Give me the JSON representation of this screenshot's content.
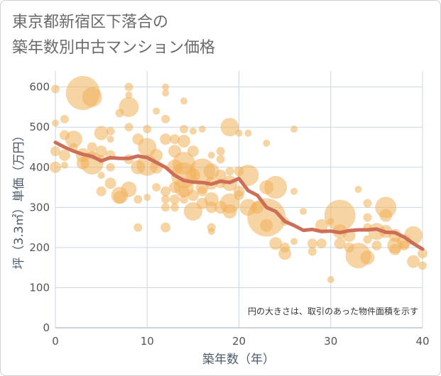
{
  "title_lines": [
    "東京都新宿区下落合の",
    "築年数別中古マンション価格"
  ],
  "colors": {
    "bubble": "#f0b05a",
    "bubble_opacity": 0.55,
    "trend_line": "#cd6e58",
    "grid": "#c8d8e6",
    "plot_bg": "#ffffff"
  },
  "chart_data": {
    "type": "scatter",
    "title": "東京都新宿区下落合の築年数別中古マンション価格",
    "xlabel": "築年数（年）",
    "ylabel": "坪（3.3㎡）単価（万円）",
    "xlim": [
      0,
      40
    ],
    "ylim": [
      0,
      640
    ],
    "x_ticks": [
      "0",
      "10",
      "20",
      "30",
      "40"
    ],
    "y_ticks": [
      "0",
      "100",
      "200",
      "300",
      "400",
      "500",
      "600"
    ],
    "grid": true,
    "annotation": "円の大きさは、取引のあった物件面積を示す",
    "series": [
      {
        "kind": "bubbles",
        "points": [
          {
            "x": 0,
            "y": 595,
            "s": 6
          },
          {
            "x": 0,
            "y": 510,
            "s": 5
          },
          {
            "x": 0,
            "y": 440,
            "s": 7
          },
          {
            "x": 0,
            "y": 400,
            "s": 8
          },
          {
            "x": 1,
            "y": 520,
            "s": 6
          },
          {
            "x": 1,
            "y": 480,
            "s": 7
          },
          {
            "x": 1,
            "y": 430,
            "s": 8
          },
          {
            "x": 1,
            "y": 405,
            "s": 5
          },
          {
            "x": 2,
            "y": 470,
            "s": 12
          },
          {
            "x": 2,
            "y": 450,
            "s": 6
          },
          {
            "x": 3,
            "y": 585,
            "s": 24
          },
          {
            "x": 3,
            "y": 430,
            "s": 10
          },
          {
            "x": 3,
            "y": 410,
            "s": 9
          },
          {
            "x": 4,
            "y": 575,
            "s": 14
          },
          {
            "x": 4,
            "y": 450,
            "s": 7
          },
          {
            "x": 4,
            "y": 410,
            "s": 16
          },
          {
            "x": 4,
            "y": 430,
            "s": 6
          },
          {
            "x": 5,
            "y": 485,
            "s": 10
          },
          {
            "x": 5,
            "y": 440,
            "s": 8
          },
          {
            "x": 5,
            "y": 420,
            "s": 6
          },
          {
            "x": 5,
            "y": 380,
            "s": 5
          },
          {
            "x": 5,
            "y": 340,
            "s": 7
          },
          {
            "x": 6,
            "y": 490,
            "s": 6
          },
          {
            "x": 6,
            "y": 470,
            "s": 5
          },
          {
            "x": 6,
            "y": 430,
            "s": 7
          },
          {
            "x": 6,
            "y": 400,
            "s": 6
          },
          {
            "x": 6,
            "y": 360,
            "s": 8
          },
          {
            "x": 7,
            "y": 535,
            "s": 6
          },
          {
            "x": 7,
            "y": 330,
            "s": 12
          },
          {
            "x": 7,
            "y": 325,
            "s": 9
          },
          {
            "x": 8,
            "y": 600,
            "s": 6
          },
          {
            "x": 8,
            "y": 580,
            "s": 5
          },
          {
            "x": 8,
            "y": 550,
            "s": 14
          },
          {
            "x": 8,
            "y": 500,
            "s": 6
          },
          {
            "x": 8,
            "y": 420,
            "s": 7
          },
          {
            "x": 8,
            "y": 345,
            "s": 11
          },
          {
            "x": 9,
            "y": 470,
            "s": 8
          },
          {
            "x": 9,
            "y": 400,
            "s": 10
          },
          {
            "x": 9,
            "y": 320,
            "s": 6
          },
          {
            "x": 9,
            "y": 250,
            "s": 6
          },
          {
            "x": 10,
            "y": 495,
            "s": 6
          },
          {
            "x": 10,
            "y": 450,
            "s": 13
          },
          {
            "x": 10,
            "y": 405,
            "s": 15
          },
          {
            "x": 10,
            "y": 325,
            "s": 5
          },
          {
            "x": 11,
            "y": 540,
            "s": 5
          },
          {
            "x": 11,
            "y": 430,
            "s": 9
          },
          {
            "x": 11,
            "y": 400,
            "s": 9
          },
          {
            "x": 11,
            "y": 350,
            "s": 6
          },
          {
            "x": 12,
            "y": 600,
            "s": 5
          },
          {
            "x": 12,
            "y": 585,
            "s": 5
          },
          {
            "x": 12,
            "y": 520,
            "s": 6
          },
          {
            "x": 12,
            "y": 470,
            "s": 8
          },
          {
            "x": 12,
            "y": 340,
            "s": 7
          },
          {
            "x": 12,
            "y": 320,
            "s": 6
          },
          {
            "x": 12,
            "y": 300,
            "s": 6
          },
          {
            "x": 12,
            "y": 250,
            "s": 7
          },
          {
            "x": 13,
            "y": 470,
            "s": 7
          },
          {
            "x": 13,
            "y": 440,
            "s": 9
          },
          {
            "x": 13,
            "y": 400,
            "s": 11
          },
          {
            "x": 13,
            "y": 350,
            "s": 8
          },
          {
            "x": 13,
            "y": 320,
            "s": 7
          },
          {
            "x": 13,
            "y": 300,
            "s": 6
          },
          {
            "x": 14,
            "y": 565,
            "s": 5
          },
          {
            "x": 14,
            "y": 495,
            "s": 6
          },
          {
            "x": 14,
            "y": 465,
            "s": 9
          },
          {
            "x": 14,
            "y": 410,
            "s": 16
          },
          {
            "x": 14,
            "y": 380,
            "s": 18
          },
          {
            "x": 14,
            "y": 350,
            "s": 14
          },
          {
            "x": 14,
            "y": 340,
            "s": 8
          },
          {
            "x": 14,
            "y": 320,
            "s": 6
          },
          {
            "x": 15,
            "y": 490,
            "s": 5
          },
          {
            "x": 15,
            "y": 440,
            "s": 8
          },
          {
            "x": 15,
            "y": 380,
            "s": 10
          },
          {
            "x": 15,
            "y": 330,
            "s": 8
          },
          {
            "x": 15,
            "y": 290,
            "s": 13
          },
          {
            "x": 16,
            "y": 495,
            "s": 5
          },
          {
            "x": 16,
            "y": 390,
            "s": 18
          },
          {
            "x": 16,
            "y": 350,
            "s": 9
          },
          {
            "x": 16,
            "y": 340,
            "s": 7
          },
          {
            "x": 16,
            "y": 310,
            "s": 8
          },
          {
            "x": 17,
            "y": 430,
            "s": 5
          },
          {
            "x": 17,
            "y": 390,
            "s": 11
          },
          {
            "x": 17,
            "y": 360,
            "s": 9
          },
          {
            "x": 17,
            "y": 320,
            "s": 10
          },
          {
            "x": 17,
            "y": 300,
            "s": 8
          },
          {
            "x": 17,
            "y": 250,
            "s": 6
          },
          {
            "x": 17,
            "y": 240,
            "s": 5
          },
          {
            "x": 18,
            "y": 440,
            "s": 6
          },
          {
            "x": 18,
            "y": 420,
            "s": 6
          },
          {
            "x": 18,
            "y": 380,
            "s": 8
          },
          {
            "x": 18,
            "y": 360,
            "s": 7
          },
          {
            "x": 18,
            "y": 300,
            "s": 9
          },
          {
            "x": 19,
            "y": 500,
            "s": 13
          },
          {
            "x": 19,
            "y": 390,
            "s": 6
          },
          {
            "x": 19,
            "y": 360,
            "s": 11
          },
          {
            "x": 19,
            "y": 310,
            "s": 14
          },
          {
            "x": 19,
            "y": 290,
            "s": 10
          },
          {
            "x": 20,
            "y": 485,
            "s": 5
          },
          {
            "x": 20,
            "y": 390,
            "s": 7
          },
          {
            "x": 20,
            "y": 340,
            "s": 8
          },
          {
            "x": 20,
            "y": 330,
            "s": 7
          },
          {
            "x": 21,
            "y": 485,
            "s": 5
          },
          {
            "x": 21,
            "y": 380,
            "s": 15
          },
          {
            "x": 21,
            "y": 300,
            "s": 12
          },
          {
            "x": 22,
            "y": 300,
            "s": 9
          },
          {
            "x": 23,
            "y": 460,
            "s": 5
          },
          {
            "x": 23,
            "y": 350,
            "s": 10
          },
          {
            "x": 23,
            "y": 275,
            "s": 27
          },
          {
            "x": 23,
            "y": 255,
            "s": 9
          },
          {
            "x": 24,
            "y": 350,
            "s": 16
          },
          {
            "x": 24,
            "y": 210,
            "s": 9
          },
          {
            "x": 25,
            "y": 265,
            "s": 6
          },
          {
            "x": 25,
            "y": 200,
            "s": 7
          },
          {
            "x": 25,
            "y": 185,
            "s": 9
          },
          {
            "x": 26,
            "y": 495,
            "s": 5
          },
          {
            "x": 26,
            "y": 340,
            "s": 5
          },
          {
            "x": 26,
            "y": 215,
            "s": 5
          },
          {
            "x": 27,
            "y": 290,
            "s": 5
          },
          {
            "x": 28,
            "y": 210,
            "s": 7
          },
          {
            "x": 28,
            "y": 190,
            "s": 6
          },
          {
            "x": 29,
            "y": 255,
            "s": 9
          },
          {
            "x": 29,
            "y": 210,
            "s": 7
          },
          {
            "x": 30,
            "y": 265,
            "s": 5
          },
          {
            "x": 30,
            "y": 120,
            "s": 5
          },
          {
            "x": 31,
            "y": 280,
            "s": 22
          },
          {
            "x": 31,
            "y": 240,
            "s": 10
          },
          {
            "x": 31,
            "y": 210,
            "s": 8
          },
          {
            "x": 32,
            "y": 230,
            "s": 9
          },
          {
            "x": 32,
            "y": 200,
            "s": 7
          },
          {
            "x": 33,
            "y": 345,
            "s": 5
          },
          {
            "x": 33,
            "y": 180,
            "s": 18
          },
          {
            "x": 34,
            "y": 310,
            "s": 6
          },
          {
            "x": 34,
            "y": 275,
            "s": 6
          },
          {
            "x": 34,
            "y": 250,
            "s": 6
          },
          {
            "x": 34,
            "y": 220,
            "s": 6
          },
          {
            "x": 34,
            "y": 175,
            "s": 10
          },
          {
            "x": 35,
            "y": 240,
            "s": 12
          },
          {
            "x": 35,
            "y": 205,
            "s": 7
          },
          {
            "x": 36,
            "y": 300,
            "s": 15
          },
          {
            "x": 36,
            "y": 280,
            "s": 9
          },
          {
            "x": 36,
            "y": 240,
            "s": 9
          },
          {
            "x": 37,
            "y": 230,
            "s": 9
          },
          {
            "x": 37,
            "y": 205,
            "s": 11
          },
          {
            "x": 37,
            "y": 195,
            "s": 8
          },
          {
            "x": 38,
            "y": 215,
            "s": 10
          },
          {
            "x": 38,
            "y": 205,
            "s": 7
          },
          {
            "x": 39,
            "y": 230,
            "s": 13
          },
          {
            "x": 39,
            "y": 165,
            "s": 9
          },
          {
            "x": 40,
            "y": 185,
            "s": 7
          },
          {
            "x": 40,
            "y": 155,
            "s": 6
          }
        ]
      },
      {
        "kind": "trend",
        "x": [
          0,
          1,
          2,
          3,
          4,
          5,
          6,
          7,
          8,
          9,
          10,
          11,
          12,
          13,
          14,
          15,
          16,
          17,
          18,
          19,
          20,
          21,
          22,
          23,
          24,
          25,
          26,
          27,
          28,
          29,
          30,
          31,
          32,
          33,
          34,
          35,
          36,
          37,
          38,
          39,
          40
        ],
        "y": [
          462,
          450,
          440,
          432,
          427,
          416,
          424,
          422,
          422,
          428,
          424,
          412,
          400,
          380,
          367,
          363,
          362,
          358,
          365,
          362,
          372,
          342,
          330,
          300,
          290,
          265,
          255,
          243,
          245,
          240,
          241,
          237,
          242,
          244,
          244,
          246,
          238,
          237,
          226,
          210,
          196
        ]
      }
    ]
  }
}
